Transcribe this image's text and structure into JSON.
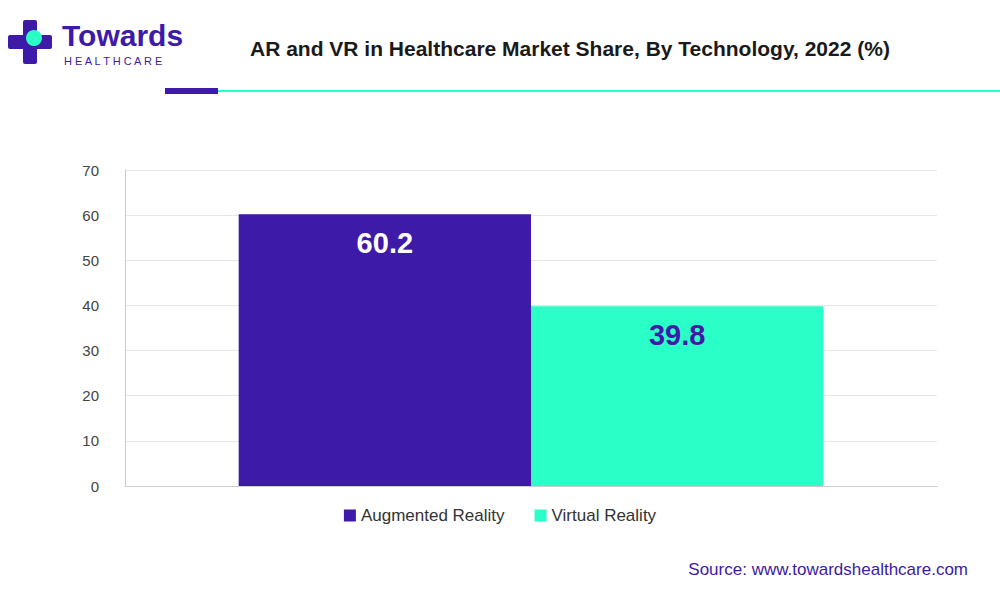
{
  "chart_data": {
    "type": "bar",
    "title": "AR and VR in Healthcare Market Share, By Technology, 2022 (%)",
    "categories": [
      null
    ],
    "series": [
      {
        "name": "Augmented Reality",
        "color": "#3d1aa8",
        "values": [
          60.2
        ]
      },
      {
        "name": "Virtual Reality",
        "color": "#2affc8",
        "values": [
          39.8
        ]
      }
    ],
    "ylim": [
      0,
      70
    ],
    "yticks": [
      0,
      10,
      20,
      30,
      40,
      50,
      60,
      70
    ],
    "grid": true,
    "legend": "bottom",
    "data_labels": true,
    "annotations": [
      "Towards",
      "HEALTHCARE",
      "Source: www.towardshealthcare.com"
    ]
  }
}
